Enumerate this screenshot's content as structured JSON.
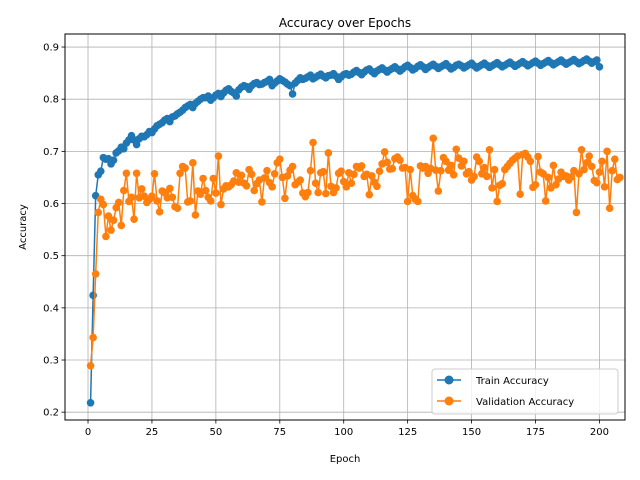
{
  "chart_data": {
    "type": "line",
    "title": "Accuracy over Epochs",
    "xlabel": "Epoch",
    "ylabel": "Accuracy",
    "xlim": [
      -9,
      210
    ],
    "ylim": [
      0.185,
      0.925
    ],
    "xticks": [
      0,
      25,
      50,
      75,
      100,
      125,
      150,
      175,
      200
    ],
    "yticks": [
      0.2,
      0.3,
      0.4,
      0.5,
      0.6,
      0.7,
      0.8,
      0.9
    ],
    "xtick_labels": [
      "0",
      "25",
      "50",
      "75",
      "100",
      "125",
      "150",
      "175",
      "200"
    ],
    "ytick_labels": [
      "0.2",
      "0.3",
      "0.4",
      "0.5",
      "0.6",
      "0.7",
      "0.8",
      "0.9"
    ],
    "grid": true,
    "legend_position": "lower right",
    "x_start": 1,
    "series": [
      {
        "name": "Train Accuracy",
        "color": "#1f77b4",
        "values": [
          0.218,
          0.424,
          0.615,
          0.655,
          0.662,
          0.688,
          0.685,
          0.686,
          0.676,
          0.683,
          0.697,
          0.701,
          0.708,
          0.705,
          0.716,
          0.722,
          0.73,
          0.722,
          0.713,
          0.724,
          0.729,
          0.728,
          0.732,
          0.738,
          0.736,
          0.743,
          0.749,
          0.752,
          0.755,
          0.76,
          0.763,
          0.757,
          0.766,
          0.768,
          0.772,
          0.775,
          0.779,
          0.784,
          0.787,
          0.79,
          0.784,
          0.792,
          0.796,
          0.8,
          0.803,
          0.803,
          0.806,
          0.798,
          0.803,
          0.808,
          0.811,
          0.805,
          0.812,
          0.817,
          0.82,
          0.815,
          0.812,
          0.806,
          0.818,
          0.823,
          0.826,
          0.824,
          0.819,
          0.826,
          0.83,
          0.832,
          0.828,
          0.829,
          0.832,
          0.834,
          0.838,
          0.826,
          0.831,
          0.835,
          0.839,
          0.836,
          0.833,
          0.829,
          0.826,
          0.81,
          0.831,
          0.836,
          0.841,
          0.838,
          0.84,
          0.843,
          0.846,
          0.839,
          0.842,
          0.845,
          0.848,
          0.844,
          0.841,
          0.845,
          0.846,
          0.849,
          0.844,
          0.838,
          0.843,
          0.847,
          0.849,
          0.846,
          0.848,
          0.852,
          0.855,
          0.851,
          0.847,
          0.852,
          0.856,
          0.858,
          0.853,
          0.849,
          0.854,
          0.857,
          0.86,
          0.856,
          0.852,
          0.856,
          0.859,
          0.862,
          0.858,
          0.854,
          0.858,
          0.862,
          0.865,
          0.861,
          0.856,
          0.859,
          0.863,
          0.866,
          0.862,
          0.857,
          0.861,
          0.864,
          0.867,
          0.863,
          0.859,
          0.862,
          0.865,
          0.868,
          0.863,
          0.858,
          0.861,
          0.865,
          0.867,
          0.864,
          0.86,
          0.863,
          0.866,
          0.869,
          0.864,
          0.86,
          0.863,
          0.866,
          0.869,
          0.865,
          0.861,
          0.864,
          0.867,
          0.87,
          0.866,
          0.862,
          0.865,
          0.868,
          0.871,
          0.867,
          0.863,
          0.866,
          0.869,
          0.872,
          0.868,
          0.864,
          0.867,
          0.87,
          0.873,
          0.869,
          0.865,
          0.868,
          0.871,
          0.874,
          0.87,
          0.866,
          0.869,
          0.872,
          0.875,
          0.871,
          0.867,
          0.87,
          0.873,
          0.876,
          0.872,
          0.868,
          0.871,
          0.874,
          0.877,
          0.873,
          0.869,
          0.872,
          0.875,
          0.862
        ]
      },
      {
        "name": "Validation Accuracy",
        "color": "#ff7f0e",
        "values": [
          0.289,
          0.343,
          0.465,
          0.583,
          0.608,
          0.598,
          0.537,
          0.576,
          0.549,
          0.568,
          0.592,
          0.602,
          0.558,
          0.625,
          0.658,
          0.604,
          0.612,
          0.57,
          0.658,
          0.611,
          0.628,
          0.614,
          0.602,
          0.608,
          0.614,
          0.657,
          0.605,
          0.584,
          0.624,
          0.621,
          0.611,
          0.629,
          0.612,
          0.594,
          0.591,
          0.658,
          0.671,
          0.668,
          0.603,
          0.605,
          0.678,
          0.578,
          0.624,
          0.618,
          0.648,
          0.625,
          0.612,
          0.605,
          0.648,
          0.62,
          0.691,
          0.598,
          0.628,
          0.634,
          0.632,
          0.636,
          0.643,
          0.659,
          0.641,
          0.654,
          0.639,
          0.634,
          0.665,
          0.656,
          0.625,
          0.638,
          0.645,
          0.603,
          0.649,
          0.663,
          0.64,
          0.632,
          0.657,
          0.678,
          0.685,
          0.65,
          0.61,
          0.653,
          0.664,
          0.671,
          0.636,
          0.641,
          0.645,
          0.62,
          0.613,
          0.621,
          0.663,
          0.717,
          0.639,
          0.621,
          0.659,
          0.661,
          0.619,
          0.697,
          0.633,
          0.621,
          0.63,
          0.658,
          0.662,
          0.642,
          0.632,
          0.659,
          0.639,
          0.656,
          0.671,
          0.668,
          0.672,
          0.652,
          0.656,
          0.617,
          0.653,
          0.641,
          0.633,
          0.662,
          0.676,
          0.699,
          0.679,
          0.666,
          0.667,
          0.686,
          0.689,
          0.683,
          0.668,
          0.669,
          0.604,
          0.665,
          0.615,
          0.608,
          0.604,
          0.672,
          0.668,
          0.671,
          0.658,
          0.667,
          0.725,
          0.664,
          0.624,
          0.663,
          0.688,
          0.681,
          0.664,
          0.673,
          0.655,
          0.704,
          0.687,
          0.672,
          0.681,
          0.657,
          0.661,
          0.645,
          0.652,
          0.689,
          0.681,
          0.657,
          0.669,
          0.652,
          0.703,
          0.63,
          0.665,
          0.604,
          0.635,
          0.638,
          0.665,
          0.671,
          0.677,
          0.683,
          0.687,
          0.691,
          0.618,
          0.694,
          0.696,
          0.689,
          0.681,
          0.631,
          0.636,
          0.69,
          0.66,
          0.657,
          0.605,
          0.65,
          0.63,
          0.673,
          0.636,
          0.647,
          0.66,
          0.652,
          0.653,
          0.645,
          0.651,
          0.663,
          0.583,
          0.657,
          0.703,
          0.665,
          0.678,
          0.691,
          0.671,
          0.644,
          0.64,
          0.66,
          0.681,
          0.632,
          0.7,
          0.591,
          0.663,
          0.685,
          0.646,
          0.65
        ]
      }
    ]
  }
}
